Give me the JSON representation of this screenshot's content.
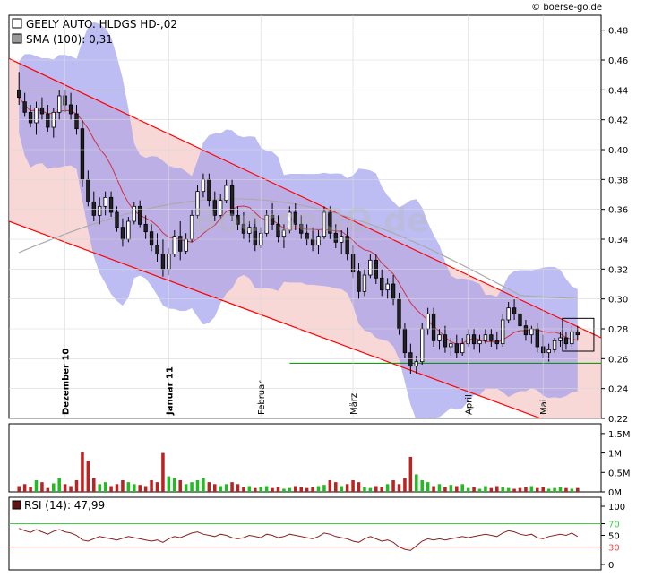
{
  "source": "© boerse-go.de",
  "watermark": "BoerseGO.de",
  "price_chart": {
    "legend_name": "GEELY AUTO. HLDGS  HD-,02",
    "legend_sma": "SMA (100): 0,31",
    "y_ticks": [
      "0,48",
      "0,46",
      "0,44",
      "0,42",
      "0,40",
      "0,38",
      "0,36",
      "0,34",
      "0,32",
      "0,30",
      "0,28",
      "0,26",
      "0,24",
      "0,22"
    ],
    "y_range": [
      0.22,
      0.49
    ],
    "months": [
      "Dezember 10",
      "Januar 11",
      "Februar",
      "März",
      "April",
      "Mai"
    ],
    "support_level": 0.257,
    "colors": {
      "up": "#ffffff",
      "down": "#222222",
      "band": "#9999ee",
      "channel": "#f6c9c9",
      "trend": "#ff0000",
      "sma_short": "#cc3344",
      "sma100": "#aaaaaa",
      "support": "#008800"
    }
  },
  "volume_chart": {
    "y_ticks": [
      "1.5M",
      "1M",
      "0.5M",
      "0M"
    ],
    "y_range": [
      0,
      1750000
    ],
    "colors": {
      "up": "#22bb22",
      "down": "#bb2222"
    }
  },
  "rsi_chart": {
    "legend": "RSI (14): 47,99",
    "y_ticks": [
      "100",
      "70",
      "50",
      "30",
      "0"
    ],
    "levels": {
      "upper": 70,
      "lower": 30
    },
    "colors": {
      "line": "#882222",
      "upper": "#44cc44",
      "lower": "#ee4444",
      "fill_low": "#ee4444"
    }
  },
  "chart_data": {
    "type": "candlestick",
    "x_labels_positions_note": "daily candles Nov 2010 - May 2011",
    "candles": [
      [
        0.44,
        0.452,
        0.43,
        0.435
      ],
      [
        0.432,
        0.438,
        0.422,
        0.425
      ],
      [
        0.425,
        0.43,
        0.415,
        0.418
      ],
      [
        0.418,
        0.432,
        0.41,
        0.428
      ],
      [
        0.428,
        0.435,
        0.42,
        0.424
      ],
      [
        0.424,
        0.43,
        0.412,
        0.415
      ],
      [
        0.415,
        0.428,
        0.408,
        0.425
      ],
      [
        0.425,
        0.44,
        0.42,
        0.436
      ],
      [
        0.436,
        0.44,
        0.425,
        0.43
      ],
      [
        0.43,
        0.438,
        0.42,
        0.424
      ],
      [
        0.424,
        0.43,
        0.41,
        0.414
      ],
      [
        0.414,
        0.42,
        0.375,
        0.38
      ],
      [
        0.38,
        0.386,
        0.362,
        0.365
      ],
      [
        0.365,
        0.372,
        0.352,
        0.356
      ],
      [
        0.356,
        0.368,
        0.35,
        0.362
      ],
      [
        0.362,
        0.372,
        0.356,
        0.368
      ],
      [
        0.368,
        0.372,
        0.355,
        0.358
      ],
      [
        0.358,
        0.362,
        0.345,
        0.348
      ],
      [
        0.348,
        0.354,
        0.335,
        0.34
      ],
      [
        0.34,
        0.355,
        0.338,
        0.352
      ],
      [
        0.352,
        0.365,
        0.35,
        0.362
      ],
      [
        0.362,
        0.366,
        0.348,
        0.35
      ],
      [
        0.35,
        0.356,
        0.34,
        0.345
      ],
      [
        0.345,
        0.35,
        0.332,
        0.336
      ],
      [
        0.336,
        0.344,
        0.325,
        0.33
      ],
      [
        0.33,
        0.34,
        0.315,
        0.32
      ],
      [
        0.32,
        0.334,
        0.316,
        0.33
      ],
      [
        0.33,
        0.346,
        0.328,
        0.342
      ],
      [
        0.342,
        0.352,
        0.326,
        0.332
      ],
      [
        0.332,
        0.344,
        0.33,
        0.34
      ],
      [
        0.34,
        0.36,
        0.338,
        0.356
      ],
      [
        0.356,
        0.376,
        0.354,
        0.372
      ],
      [
        0.372,
        0.384,
        0.368,
        0.38
      ],
      [
        0.38,
        0.384,
        0.362,
        0.366
      ],
      [
        0.366,
        0.372,
        0.352,
        0.356
      ],
      [
        0.356,
        0.37,
        0.354,
        0.366
      ],
      [
        0.366,
        0.38,
        0.364,
        0.376
      ],
      [
        0.376,
        0.38,
        0.352,
        0.356
      ],
      [
        0.356,
        0.362,
        0.346,
        0.35
      ],
      [
        0.35,
        0.358,
        0.34,
        0.344
      ],
      [
        0.344,
        0.352,
        0.338,
        0.348
      ],
      [
        0.348,
        0.354,
        0.332,
        0.336
      ],
      [
        0.336,
        0.348,
        0.334,
        0.344
      ],
      [
        0.344,
        0.36,
        0.342,
        0.356
      ],
      [
        0.356,
        0.364,
        0.346,
        0.35
      ],
      [
        0.35,
        0.356,
        0.338,
        0.342
      ],
      [
        0.342,
        0.35,
        0.334,
        0.346
      ],
      [
        0.346,
        0.362,
        0.344,
        0.358
      ],
      [
        0.358,
        0.364,
        0.346,
        0.35
      ],
      [
        0.35,
        0.356,
        0.34,
        0.344
      ],
      [
        0.344,
        0.35,
        0.336,
        0.34
      ],
      [
        0.34,
        0.348,
        0.332,
        0.336
      ],
      [
        0.336,
        0.346,
        0.33,
        0.342
      ],
      [
        0.342,
        0.362,
        0.34,
        0.358
      ],
      [
        0.358,
        0.362,
        0.34,
        0.344
      ],
      [
        0.344,
        0.35,
        0.334,
        0.338
      ],
      [
        0.338,
        0.346,
        0.33,
        0.342
      ],
      [
        0.342,
        0.348,
        0.326,
        0.33
      ],
      [
        0.33,
        0.336,
        0.314,
        0.318
      ],
      [
        0.318,
        0.324,
        0.3,
        0.305
      ],
      [
        0.305,
        0.32,
        0.302,
        0.316
      ],
      [
        0.316,
        0.33,
        0.314,
        0.326
      ],
      [
        0.326,
        0.33,
        0.31,
        0.314
      ],
      [
        0.314,
        0.32,
        0.302,
        0.306
      ],
      [
        0.306,
        0.314,
        0.3,
        0.31
      ],
      [
        0.31,
        0.316,
        0.296,
        0.3
      ],
      [
        0.3,
        0.304,
        0.276,
        0.28
      ],
      [
        0.28,
        0.284,
        0.26,
        0.264
      ],
      [
        0.264,
        0.27,
        0.25,
        0.255
      ],
      [
        0.255,
        0.262,
        0.25,
        0.258
      ],
      [
        0.258,
        0.284,
        0.256,
        0.28
      ],
      [
        0.28,
        0.294,
        0.276,
        0.29
      ],
      [
        0.29,
        0.294,
        0.268,
        0.272
      ],
      [
        0.272,
        0.28,
        0.266,
        0.276
      ],
      [
        0.276,
        0.282,
        0.264,
        0.268
      ],
      [
        0.268,
        0.274,
        0.262,
        0.27
      ],
      [
        0.27,
        0.276,
        0.26,
        0.264
      ],
      [
        0.264,
        0.274,
        0.262,
        0.27
      ],
      [
        0.27,
        0.28,
        0.268,
        0.276
      ],
      [
        0.276,
        0.28,
        0.266,
        0.27
      ],
      [
        0.27,
        0.276,
        0.264,
        0.272
      ],
      [
        0.272,
        0.28,
        0.27,
        0.276
      ],
      [
        0.276,
        0.28,
        0.268,
        0.272
      ],
      [
        0.272,
        0.278,
        0.266,
        0.27
      ],
      [
        0.27,
        0.29,
        0.268,
        0.286
      ],
      [
        0.286,
        0.298,
        0.284,
        0.294
      ],
      [
        0.294,
        0.3,
        0.286,
        0.29
      ],
      [
        0.29,
        0.294,
        0.278,
        0.282
      ],
      [
        0.282,
        0.286,
        0.272,
        0.276
      ],
      [
        0.276,
        0.282,
        0.27,
        0.28
      ],
      [
        0.28,
        0.284,
        0.264,
        0.268
      ],
      [
        0.268,
        0.276,
        0.26,
        0.264
      ],
      [
        0.264,
        0.27,
        0.258,
        0.266
      ],
      [
        0.266,
        0.274,
        0.264,
        0.272
      ],
      [
        0.272,
        0.278,
        0.268,
        0.274
      ],
      [
        0.274,
        0.278,
        0.266,
        0.27
      ],
      [
        0.27,
        0.282,
        0.268,
        0.278
      ],
      [
        0.278,
        0.282,
        0.272,
        0.276
      ]
    ],
    "volume_millions": [
      0.15,
      0.2,
      0.12,
      0.3,
      0.25,
      0.1,
      0.22,
      0.35,
      0.2,
      0.15,
      0.3,
      1.02,
      0.8,
      0.35,
      0.2,
      0.25,
      0.15,
      0.2,
      0.3,
      0.25,
      0.2,
      0.18,
      0.15,
      0.3,
      0.25,
      1.0,
      0.4,
      0.35,
      0.3,
      0.2,
      0.25,
      0.3,
      0.35,
      0.25,
      0.2,
      0.15,
      0.2,
      0.25,
      0.2,
      0.12,
      0.15,
      0.1,
      0.12,
      0.15,
      0.1,
      0.12,
      0.08,
      0.1,
      0.15,
      0.12,
      0.1,
      0.12,
      0.15,
      0.18,
      0.3,
      0.25,
      0.15,
      0.2,
      0.3,
      0.25,
      0.12,
      0.1,
      0.15,
      0.12,
      0.2,
      0.3,
      0.2,
      0.35,
      0.9,
      0.45,
      0.3,
      0.25,
      0.15,
      0.2,
      0.12,
      0.18,
      0.15,
      0.2,
      0.1,
      0.12,
      0.08,
      0.15,
      0.1,
      0.15,
      0.12,
      0.1,
      0.08,
      0.1,
      0.12,
      0.15,
      0.1,
      0.12,
      0.08,
      0.1,
      0.12,
      0.1,
      0.08,
      0.1
    ],
    "rsi": [
      62,
      58,
      55,
      60,
      56,
      52,
      57,
      60,
      56,
      54,
      50,
      42,
      40,
      44,
      48,
      46,
      44,
      42,
      45,
      48,
      46,
      44,
      42,
      40,
      42,
      38,
      44,
      48,
      46,
      50,
      54,
      56,
      52,
      50,
      48,
      52,
      50,
      46,
      44,
      46,
      50,
      48,
      46,
      52,
      50,
      46,
      48,
      52,
      50,
      48,
      46,
      44,
      48,
      54,
      52,
      48,
      46,
      44,
      40,
      38,
      44,
      48,
      44,
      40,
      42,
      38,
      30,
      26,
      24,
      32,
      40,
      44,
      42,
      44,
      42,
      44,
      46,
      48,
      46,
      48,
      50,
      52,
      50,
      48,
      54,
      58,
      56,
      52,
      50,
      52,
      46,
      44,
      48,
      50,
      52,
      50,
      54,
      48
    ]
  }
}
